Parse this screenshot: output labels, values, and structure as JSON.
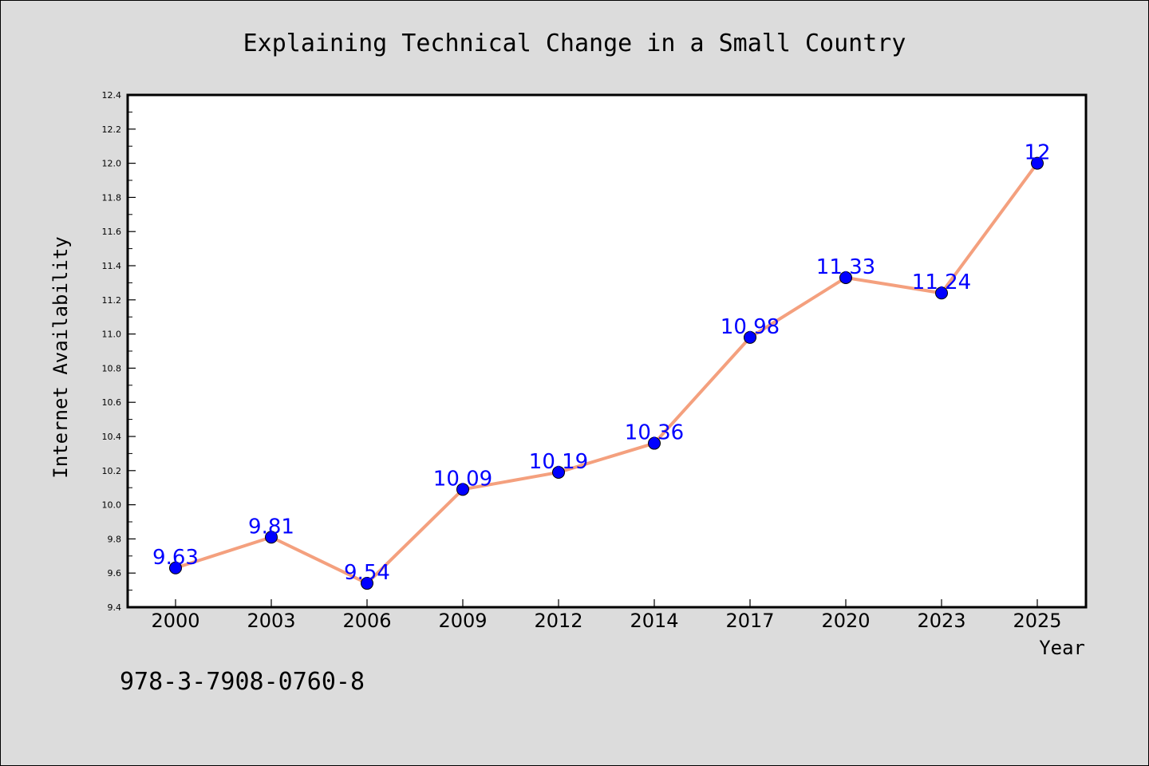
{
  "chart_data": {
    "type": "line",
    "title": "Explaining Technical Change in a Small Country",
    "xlabel": "Year",
    "ylabel": "Internet Availability",
    "categories": [
      "2000",
      "2003",
      "2006",
      "2009",
      "2012",
      "2014",
      "2017",
      "2020",
      "2023",
      "2025"
    ],
    "series": [
      {
        "values": [
          9.63,
          9.81,
          9.54,
          10.09,
          10.19,
          10.36,
          10.98,
          11.33,
          11.24,
          12
        ],
        "data_labels": [
          "9.63",
          "9.81",
          "9.54",
          "10.09",
          "10.19",
          "10.36",
          "10.98",
          "11.33",
          "11.24",
          "12"
        ]
      }
    ],
    "ylim": [
      9.4,
      12.4
    ],
    "yticks": [
      "9.4",
      "9.6",
      "9.8",
      "10.0",
      "10.2",
      "10.4",
      "10.6",
      "10.8",
      "11.0",
      "11.2",
      "11.4",
      "11.6",
      "11.8",
      "12.0",
      "12.2",
      "12.4"
    ],
    "grid": false,
    "colors": {
      "line": "#f4a07e",
      "marker": "#0000ff",
      "label": "#0000ff",
      "background": "#dcdcdc",
      "plot_background": "#ffffff"
    }
  },
  "footer": {
    "isbn": "978-3-7908-0760-8"
  }
}
